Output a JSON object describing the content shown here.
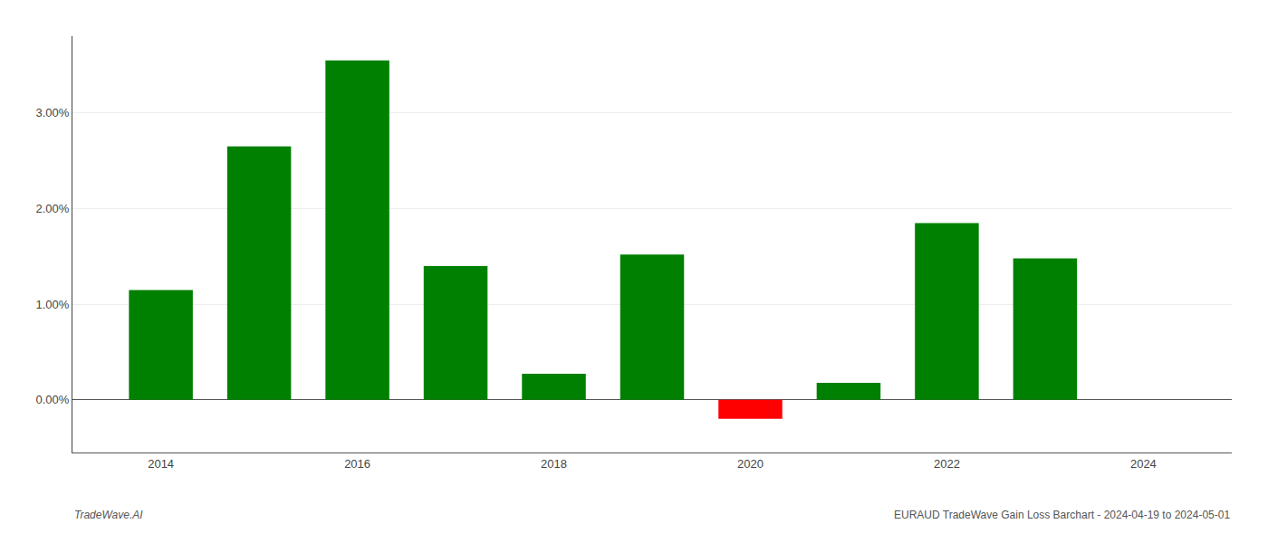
{
  "chart_data": {
    "type": "bar",
    "x": [
      2014,
      2015,
      2016,
      2017,
      2018,
      2019,
      2020,
      2021,
      2022,
      2023
    ],
    "values": [
      0.01148,
      0.02648,
      0.03548,
      0.01398,
      0.00272,
      0.01518,
      -0.00198,
      0.00178,
      0.01848,
      0.01478
    ],
    "colors": [
      "#008000",
      "#008000",
      "#008000",
      "#008000",
      "#008000",
      "#008000",
      "#ff0000",
      "#008000",
      "#008000",
      "#008000"
    ],
    "xlim": [
      2013.1,
      2024.9
    ],
    "xticks": [
      2014,
      2016,
      2018,
      2020,
      2022,
      2024
    ],
    "ylim": [
      -0.0055,
      0.038
    ],
    "yticks": [
      {
        "value": 0.0,
        "label": "0.00%"
      },
      {
        "value": 0.01,
        "label": "1.00%"
      },
      {
        "value": 0.02,
        "label": "2.00%"
      },
      {
        "value": 0.03,
        "label": "3.00%"
      }
    ],
    "grid": true,
    "annotations": [
      "TradeWave.AI",
      "EURAUD TradeWave Gain Loss Barchart - 2024-04-19 to 2024-05-01"
    ]
  }
}
